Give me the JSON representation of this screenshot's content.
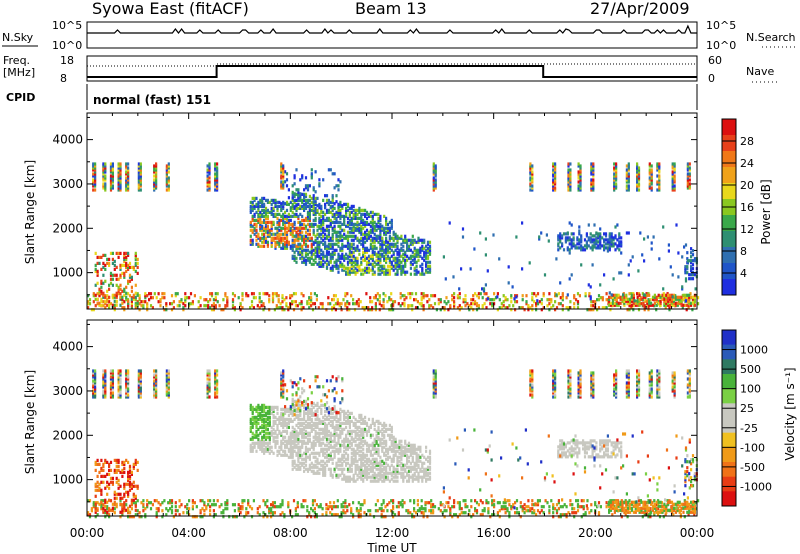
{
  "header": {
    "station": "Syowa East (fitACF)",
    "beam": "Beam 13",
    "date": "27/Apr/2009"
  },
  "strip": {
    "nsky_label": "N.Sky",
    "nsearch_label": "N.Search",
    "nsky_ticks": [
      "10^5",
      "10^0"
    ],
    "nsearch_ticks": [
      "10^5",
      "10^0"
    ],
    "freq_label_line1": "Freq.",
    "freq_label_line2": "[MHz]",
    "freq_ticks": [
      "18",
      "8"
    ],
    "nave_label": "Nave",
    "nave_ticks": [
      "60",
      "0"
    ],
    "cpid_label": "CPID",
    "cpid_value": "normal (fast) 151"
  },
  "chart_data": [
    {
      "type": "heatmap",
      "name": "power",
      "ylabel": "Slant Range [km]",
      "xlabel": "Time UT",
      "x_ticks": [
        "00:00",
        "04:00",
        "08:00",
        "12:00",
        "16:00",
        "20:00",
        "00:00"
      ],
      "xlim_hours": [
        0,
        24
      ],
      "y_ticks": [
        1000,
        2000,
        3000,
        4000
      ],
      "ylim": [
        180,
        4600
      ],
      "colorbar": {
        "label": "Power [dB]",
        "ticks": [
          "4",
          "8",
          "12",
          "16",
          "20",
          "24",
          "28"
        ],
        "colors": [
          "#1f2fe0",
          "#1f55c8",
          "#2f6fb0",
          "#2e8f72",
          "#3aa84a",
          "#8ac820",
          "#e8d81c",
          "#f0a21a",
          "#f07818",
          "#e8401a",
          "#dc1010"
        ]
      }
    },
    {
      "type": "heatmap",
      "name": "velocity",
      "ylabel": "Slant Range [km]",
      "xlabel": "Time UT",
      "x_ticks": [
        "00:00",
        "04:00",
        "08:00",
        "12:00",
        "16:00",
        "20:00",
        "00:00"
      ],
      "xlim_hours": [
        0,
        24
      ],
      "y_ticks": [
        1000,
        2000,
        3000,
        4000
      ],
      "ylim": [
        180,
        4600
      ],
      "colorbar": {
        "label": "Velocity [m s⁻¹]",
        "ticks": [
          "1000",
          "500",
          "100",
          "25",
          "-25",
          "-100",
          "-500",
          "-1000"
        ],
        "colors": [
          "#2030c8",
          "#2a5ab8",
          "#2f7a62",
          "#49b33a",
          "#7ad044",
          "#c8c8c0",
          "#c8c8c0",
          "#f0c020",
          "#f09a18",
          "#f07218",
          "#e83c14",
          "#dc1010"
        ]
      }
    }
  ],
  "colors": {
    "ground_scatter": "#c8c8c0"
  }
}
